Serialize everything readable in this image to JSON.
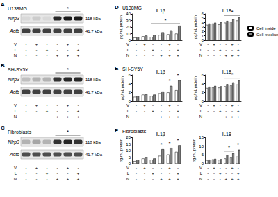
{
  "lanes": {
    "rows": [
      "V",
      "L",
      "N"
    ],
    "signs": [
      [
        "-",
        "+",
        "-",
        "-",
        "+",
        "-"
      ],
      [
        "-",
        "-",
        "+",
        "-",
        "-",
        "+"
      ],
      [
        "-",
        "-",
        "-",
        "+",
        "+",
        "+"
      ]
    ]
  },
  "blots": [
    {
      "label": "A",
      "title": "U138MG",
      "bands": [
        {
          "name": "Nlrp3",
          "size": "118 kDa",
          "intensity": [
            0.15,
            0.2,
            0.15,
            0.85,
            0.9,
            0.9
          ]
        },
        {
          "name": "Actb",
          "size": "41.7 kDa",
          "intensity": [
            0.75,
            0.75,
            0.75,
            0.75,
            0.75,
            0.75
          ]
        }
      ],
      "significance": {
        "text": "*",
        "lanes": [
          3,
          5
        ]
      }
    },
    {
      "label": "B",
      "title": "SH-SY5Y",
      "bands": [
        {
          "name": "Nlrp3",
          "size": "118 kDa",
          "intensity": [
            0.25,
            0.3,
            0.3,
            0.8,
            0.85,
            0.85
          ]
        },
        {
          "name": "Actb",
          "size": "41.7 kDa",
          "intensity": [
            0.75,
            0.75,
            0.75,
            0.75,
            0.75,
            0.75
          ]
        }
      ],
      "significance": {
        "text": "*",
        "lanes": [
          3,
          5
        ]
      }
    },
    {
      "label": "C",
      "title": "Fibroblasts",
      "bands": [
        {
          "name": "Nlrp3",
          "size": "118 kDa",
          "intensity": [
            0.3,
            0.35,
            0.3,
            0.8,
            0.85,
            0.8
          ]
        },
        {
          "name": "Actb",
          "size": "41.7 kDa",
          "intensity": [
            0.7,
            0.7,
            0.7,
            0.7,
            0.7,
            0.7
          ]
        }
      ],
      "significance": {
        "text": "*",
        "lanes": [
          3,
          5
        ]
      }
    }
  ],
  "bar_panels": [
    {
      "label": "D",
      "title": "U138MG"
    },
    {
      "label": "E",
      "title": "SH-SY5Y"
    },
    {
      "label": "F",
      "title": "Fibroblasts"
    }
  ],
  "chart_data": [
    {
      "type": "bar",
      "title": "IL1β",
      "ylabel": "pg/mL protein",
      "categories": [
        null,
        null,
        null,
        null,
        null,
        null
      ],
      "series": [
        {
          "name": "Cell inside",
          "color": "#ffffff",
          "values": [
            4,
            6,
            5,
            8,
            9,
            10
          ]
        },
        {
          "name": "Cell medium",
          "color": "#808080",
          "values": [
            5,
            7,
            8,
            12,
            15,
            22
          ]
        }
      ],
      "ylim": [
        0,
        40
      ],
      "yticks": [
        0,
        10,
        20,
        30,
        40
      ],
      "grid": false,
      "significance": [
        {
          "text": "*",
          "lanes": [
            2,
            5
          ]
        }
      ]
    },
    {
      "type": "bar",
      "title": "IL18",
      "ylabel": "pg/mL protein",
      "categories": [
        null,
        null,
        null,
        null,
        null,
        null
      ],
      "series": [
        {
          "name": "Cell inside",
          "color": "#ffffff",
          "values": [
            3.5,
            3.8,
            3.6,
            4.0,
            4.2,
            4.5
          ]
        },
        {
          "name": "Cell medium",
          "color": "#808080",
          "values": [
            3.8,
            4.0,
            4.1,
            4.4,
            4.8,
            5.2
          ]
        }
      ],
      "ylim": [
        0,
        6
      ],
      "yticks": [
        0,
        1,
        2,
        3,
        4,
        5,
        6
      ],
      "grid": false,
      "legend": "right",
      "significance": [
        {
          "text": "*",
          "lanes": [
            3,
            5
          ]
        }
      ]
    },
    {
      "type": "bar",
      "title": "IL1β",
      "ylabel": "pg/mL protein",
      "categories": [
        null,
        null,
        null,
        null,
        null,
        null
      ],
      "series": [
        {
          "name": "Cell inside",
          "color": "#ffffff",
          "values": [
            1,
            1.5,
            1.2,
            1.8,
            2,
            2.5
          ]
        },
        {
          "name": "Cell medium",
          "color": "#808080",
          "values": [
            1.2,
            1.6,
            1.5,
            2.2,
            3.5,
            4.8
          ]
        }
      ],
      "ylim": [
        0,
        6
      ],
      "yticks": [
        0,
        2,
        4,
        6
      ],
      "grid": false,
      "significance": [
        {
          "text": "*",
          "lanes": [
            4,
            4
          ]
        },
        {
          "text": "*",
          "lanes": [
            5,
            5
          ]
        }
      ]
    },
    {
      "type": "bar",
      "title": "IL18",
      "ylabel": "pg/mL protein",
      "categories": [
        null,
        null,
        null,
        null,
        null,
        null
      ],
      "series": [
        {
          "name": "Cell inside",
          "color": "#ffffff",
          "values": [
            3.0,
            3.2,
            3.1,
            3.4,
            3.6,
            3.8
          ]
        },
        {
          "name": "Cell medium",
          "color": "#808080",
          "values": [
            3.3,
            3.5,
            3.4,
            3.9,
            4.3,
            4.8
          ]
        }
      ],
      "ylim": [
        0,
        6
      ],
      "yticks": [
        0,
        2,
        4,
        6
      ],
      "grid": false,
      "significance": [
        {
          "text": "*",
          "lanes": [
            3,
            5
          ]
        }
      ]
    },
    {
      "type": "bar",
      "title": "IL1β",
      "ylabel": "pg/mL protein",
      "categories": [
        null,
        null,
        null,
        null,
        null,
        null
      ],
      "series": [
        {
          "name": "Cell inside",
          "color": "#ffffff",
          "values": [
            2,
            4,
            3,
            6,
            7,
            9
          ]
        },
        {
          "name": "Cell medium",
          "color": "#808080",
          "values": [
            3,
            5,
            4,
            11,
            12,
            14
          ]
        }
      ],
      "ylim": [
        0,
        20
      ],
      "yticks": [
        0,
        5,
        10,
        15,
        20
      ],
      "grid": false,
      "significance": [
        {
          "text": "*",
          "lanes": [
            3,
            3
          ]
        },
        {
          "text": "*",
          "lanes": [
            4,
            4
          ]
        },
        {
          "text": "*",
          "lanes": [
            5,
            5
          ]
        }
      ]
    },
    {
      "type": "bar",
      "title": "IL18",
      "ylabel": "pg/mL protein",
      "categories": [
        null,
        null,
        null,
        null,
        null,
        null
      ],
      "series": [
        {
          "name": "Cell inside",
          "color": "#ffffff",
          "values": [
            2,
            2.5,
            2.2,
            3,
            3.5,
            4
          ]
        },
        {
          "name": "Cell medium",
          "color": "#808080",
          "values": [
            2.3,
            2.8,
            2.6,
            5,
            6,
            8
          ]
        }
      ],
      "ylim": [
        0,
        15
      ],
      "yticks": [
        0,
        5,
        10,
        15
      ],
      "grid": false,
      "significance": [
        {
          "text": "*",
          "lanes": [
            3,
            4
          ]
        },
        {
          "text": "*",
          "lanes": [
            5,
            5
          ]
        }
      ]
    }
  ]
}
